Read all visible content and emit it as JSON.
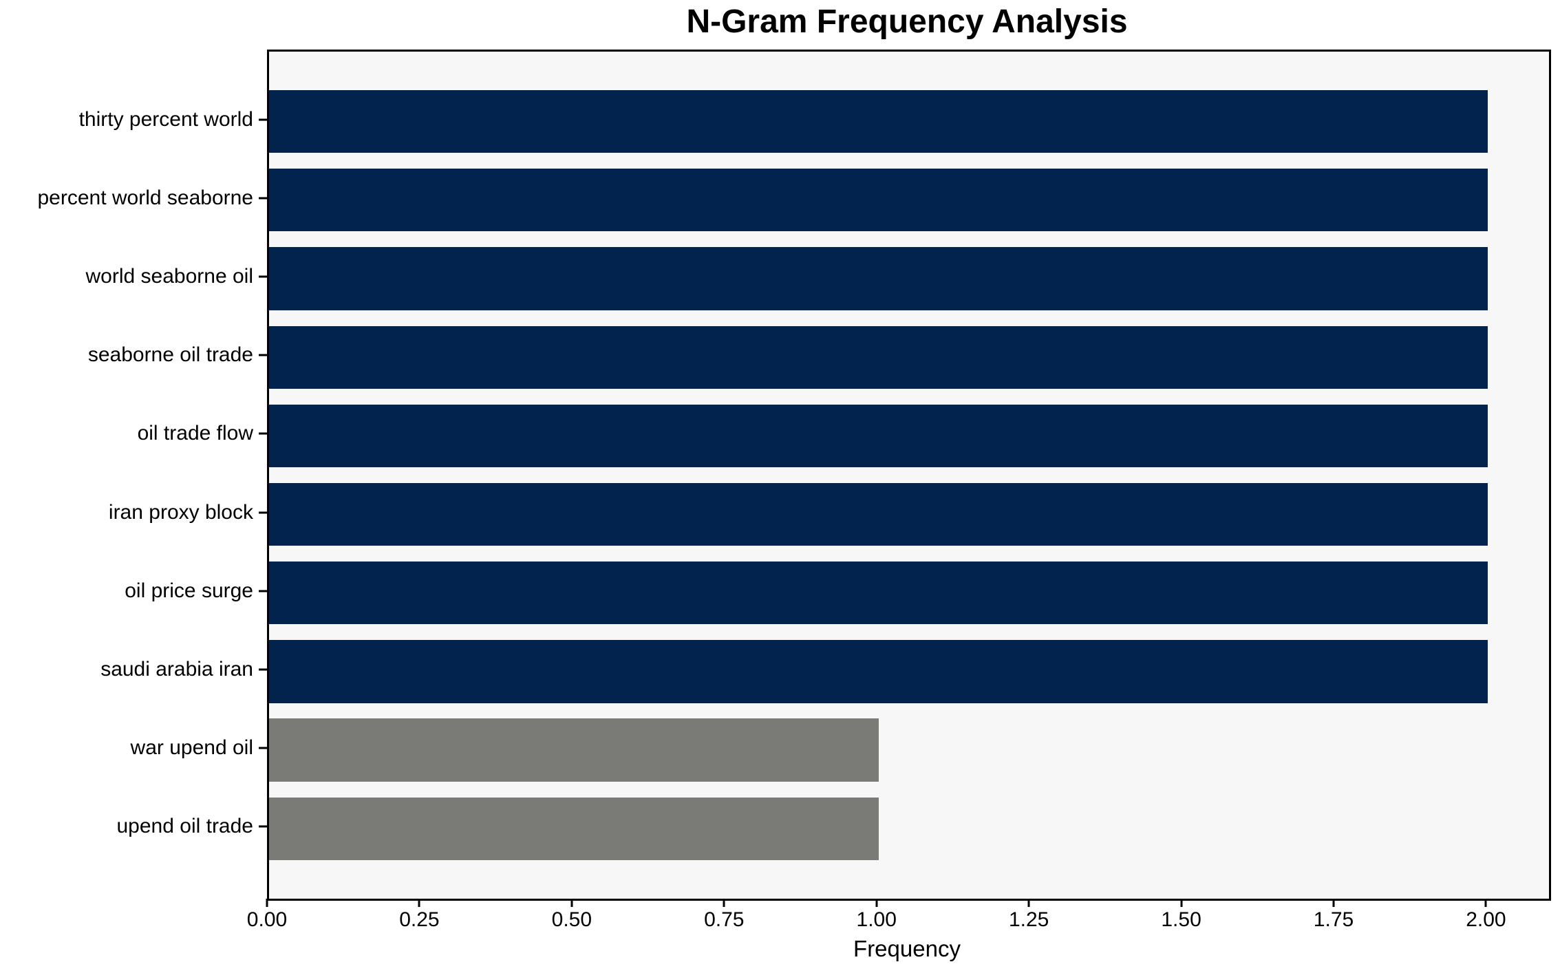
{
  "chart_data": {
    "type": "bar",
    "orientation": "horizontal",
    "title": "N-Gram Frequency Analysis",
    "xlabel": "Frequency",
    "ylabel": "",
    "categories": [
      "thirty percent world",
      "percent world seaborne",
      "world seaborne oil",
      "seaborne oil trade",
      "oil trade flow",
      "iran proxy block",
      "oil price surge",
      "saudi arabia iran",
      "war upend oil",
      "upend oil trade"
    ],
    "values": [
      2,
      2,
      2,
      2,
      2,
      2,
      2,
      2,
      1,
      1
    ],
    "bar_colors": [
      "#02234d",
      "#02234d",
      "#02234d",
      "#02234d",
      "#02234d",
      "#02234d",
      "#02234d",
      "#02234d",
      "#7a7a77",
      "#7a7a77"
    ],
    "xlim": [
      0,
      2.1
    ],
    "x_ticks": [
      {
        "value": 0.0,
        "label": "0.00"
      },
      {
        "value": 0.25,
        "label": "0.25"
      },
      {
        "value": 0.5,
        "label": "0.50"
      },
      {
        "value": 0.75,
        "label": "0.75"
      },
      {
        "value": 1.0,
        "label": "1.00"
      },
      {
        "value": 1.25,
        "label": "1.25"
      },
      {
        "value": 1.5,
        "label": "1.50"
      },
      {
        "value": 1.75,
        "label": "1.75"
      },
      {
        "value": 2.0,
        "label": "2.00"
      }
    ],
    "grid": false,
    "legend": null,
    "colors": {
      "high_frequency_bar": "#02234d",
      "low_frequency_bar": "#7a7a77",
      "plot_background": "#f7f7f7",
      "figure_background": "#ffffff",
      "axis": "#000000",
      "text": "#000000"
    }
  }
}
